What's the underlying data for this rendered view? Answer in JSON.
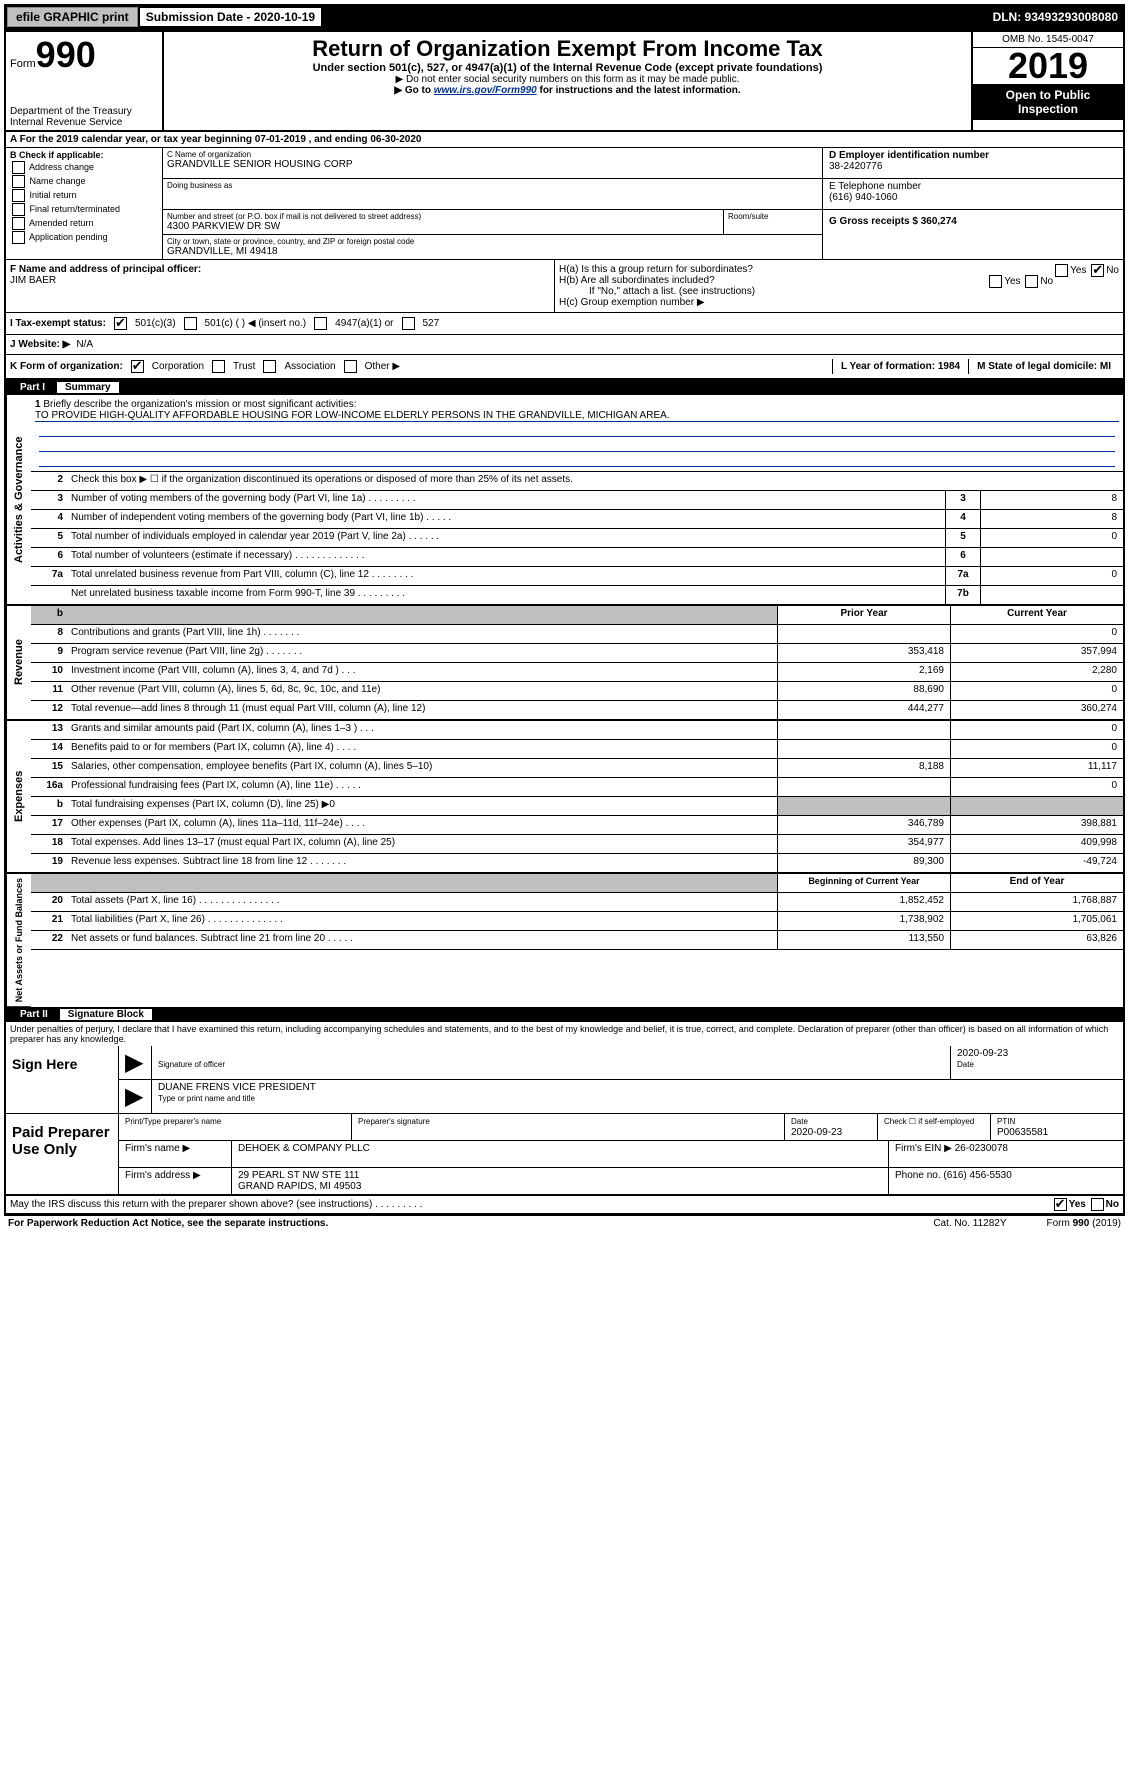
{
  "top_bar": {
    "efile": "efile GRAPHIC print",
    "submission_label": "Submission Date - 2020-10-19",
    "dln": "DLN: 93493293008080"
  },
  "header": {
    "form_label": "Form",
    "form_number": "990",
    "dept": "Department of the Treasury",
    "irs": "Internal Revenue Service",
    "title": "Return of Organization Exempt From Income Tax",
    "subtitle": "Under section 501(c), 527, or 4947(a)(1) of the Internal Revenue Code (except private foundations)",
    "note1": "▶ Do not enter social security numbers on this form as it may be made public.",
    "note2_pre": "▶ Go to ",
    "note2_link": "www.irs.gov/Form990",
    "note2_post": " for instructions and the latest information.",
    "omb": "OMB No. 1545-0047",
    "year": "2019",
    "open": "Open to Public Inspection"
  },
  "row_a": "A For the 2019 calendar year, or tax year beginning 07-01-2019   , and ending 06-30-2020",
  "col_b": {
    "header": "B Check if applicable:",
    "items": [
      "Address change",
      "Name change",
      "Initial return",
      "Final return/terminated",
      "Amended return",
      "Application pending"
    ]
  },
  "col_c": {
    "name_label": "C Name of organization",
    "name": "GRANDVILLE SENIOR HOUSING CORP",
    "dba_label": "Doing business as",
    "addr_label": "Number and street (or P.O. box if mail is not delivered to street address)",
    "addr": "4300 PARKVIEW DR SW",
    "room_label": "Room/suite",
    "city_label": "City or town, state or province, country, and ZIP or foreign postal code",
    "city": "GRANDVILLE, MI  49418"
  },
  "col_de": {
    "d_label": "D Employer identification number",
    "ein": "38-2420776",
    "e_label": "E Telephone number",
    "phone": "(616) 940-1060",
    "g_label": "G Gross receipts $ 360,274"
  },
  "row_f": {
    "label": "F  Name and address of principal officer:",
    "name": "JIM BAER"
  },
  "row_h": {
    "ha": "H(a)  Is this a group return for subordinates?",
    "hb": "H(b)  Are all subordinates included?",
    "hb_note": "If \"No,\" attach a list. (see instructions)",
    "hc": "H(c)  Group exemption number ▶"
  },
  "row_i": {
    "label": "I   Tax-exempt status:",
    "opt1": "501(c)(3)",
    "opt2": "501(c) (   ) ◀ (insert no.)",
    "opt3": "4947(a)(1) or",
    "opt4": "527"
  },
  "row_j": {
    "label": "J   Website: ▶",
    "val": "N/A"
  },
  "row_k": {
    "label": "K Form of organization:",
    "opts": [
      "Corporation",
      "Trust",
      "Association",
      "Other ▶"
    ],
    "l": "L Year of formation: 1984",
    "m": "M State of legal domicile: MI"
  },
  "part1": {
    "label": "Part I",
    "title": "Summary"
  },
  "governance": {
    "tab": "Activities & Governance",
    "l1": "Briefly describe the organization's mission or most significant activities:",
    "l1_val": "TO PROVIDE HIGH-QUALITY AFFORDABLE HOUSING FOR LOW-INCOME ELDERLY PERSONS IN THE GRANDVILLE, MICHIGAN AREA.",
    "l2": "Check this box ▶ ☐  if the organization discontinued its operations or disposed of more than 25% of its net assets.",
    "l3": "Number of voting members of the governing body (Part VI, line 1a)   .    .    .    .    .    .    .    .    .",
    "l4": "Number of independent voting members of the governing body (Part VI, line 1b)   .    .    .    .    .",
    "l5": "Total number of individuals employed in calendar year 2019 (Part V, line 2a)   .    .    .    .    .    .",
    "l6": "Total number of volunteers (estimate if necessary)   .    .    .    .    .    .    .    .    .    .    .    .    .",
    "l7a": "Total unrelated business revenue from Part VIII, column (C), line 12   .    .    .    .    .    .    .    .",
    "l7b": "Net unrelated business taxable income from Form 990-T, line 39   .    .    .    .    .    .    .    .    .",
    "v3": "8",
    "v4": "8",
    "v5": "0",
    "v6": "",
    "v7a": "0",
    "v7b": ""
  },
  "revenue": {
    "tab": "Revenue",
    "header_prior": "Prior Year",
    "header_current": "Current Year",
    "rows": [
      {
        "n": "8",
        "d": "Contributions and grants (Part VIII, line 1h)   .    .    .    .    .    .    .",
        "p": "",
        "c": "0"
      },
      {
        "n": "9",
        "d": "Program service revenue (Part VIII, line 2g)   .    .    .    .    .    .    .",
        "p": "353,418",
        "c": "357,994"
      },
      {
        "n": "10",
        "d": "Investment income (Part VIII, column (A), lines 3, 4, and 7d )   .    .    .",
        "p": "2,169",
        "c": "2,280"
      },
      {
        "n": "11",
        "d": "Other revenue (Part VIII, column (A), lines 5, 6d, 8c, 9c, 10c, and 11e)",
        "p": "88,690",
        "c": "0"
      },
      {
        "n": "12",
        "d": "Total revenue—add lines 8 through 11 (must equal Part VIII, column (A), line 12)",
        "p": "444,277",
        "c": "360,274"
      }
    ]
  },
  "expenses": {
    "tab": "Expenses",
    "rows": [
      {
        "n": "13",
        "d": "Grants and similar amounts paid (Part IX, column (A), lines 1–3 )   .    .    .",
        "p": "",
        "c": "0"
      },
      {
        "n": "14",
        "d": "Benefits paid to or for members (Part IX, column (A), line 4)   .    .    .    .",
        "p": "",
        "c": "0"
      },
      {
        "n": "15",
        "d": "Salaries, other compensation, employee benefits (Part IX, column (A), lines 5–10)",
        "p": "8,188",
        "c": "11,117"
      },
      {
        "n": "16a",
        "d": "Professional fundraising fees (Part IX, column (A), line 11e)   .    .    .    .    .",
        "p": "",
        "c": "0"
      },
      {
        "n": "b",
        "d": "Total fundraising expenses (Part IX, column (D), line 25) ▶0",
        "p": "shaded",
        "c": "shaded"
      },
      {
        "n": "17",
        "d": "Other expenses (Part IX, column (A), lines 11a–11d, 11f–24e)   .    .    .    .",
        "p": "346,789",
        "c": "398,881"
      },
      {
        "n": "18",
        "d": "Total expenses. Add lines 13–17 (must equal Part IX, column (A), line 25)",
        "p": "354,977",
        "c": "409,998"
      },
      {
        "n": "19",
        "d": "Revenue less expenses. Subtract line 18 from line 12   .    .    .    .    .    .    .",
        "p": "89,300",
        "c": "-49,724"
      }
    ]
  },
  "netassets": {
    "tab": "Net Assets or Fund Balances",
    "header_begin": "Beginning of Current Year",
    "header_end": "End of Year",
    "rows": [
      {
        "n": "20",
        "d": "Total assets (Part X, line 16)   .    .    .    .    .    .    .    .    .    .    .    .    .    .    .",
        "p": "1,852,452",
        "c": "1,768,887"
      },
      {
        "n": "21",
        "d": "Total liabilities (Part X, line 26)   .    .    .    .    .    .    .    .    .    .    .    .    .    .",
        "p": "1,738,902",
        "c": "1,705,061"
      },
      {
        "n": "22",
        "d": "Net assets or fund balances. Subtract line 21 from line 20   .    .    .    .    .",
        "p": "113,550",
        "c": "63,826"
      }
    ]
  },
  "part2": {
    "label": "Part II",
    "title": "Signature Block",
    "perjury": "Under penalties of perjury, I declare that I have examined this return, including accompanying schedules and statements, and to the best of my knowledge and belief, it is true, correct, and complete. Declaration of preparer (other than officer) is based on all information of which preparer has any knowledge."
  },
  "sign": {
    "label": "Sign Here",
    "sig_officer": "Signature of officer",
    "date": "2020-09-23",
    "date_label": "Date",
    "name": "DUANE FRENS VICE PRESIDENT",
    "name_label": "Type or print name and title"
  },
  "paid": {
    "label": "Paid Preparer Use Only",
    "h1": "Print/Type preparer's name",
    "h2": "Preparer's signature",
    "h3": "Date",
    "h3v": "2020-09-23",
    "h4": "Check ☐ if self-employed",
    "h5": "PTIN",
    "h5v": "P00635581",
    "firm_label": "Firm's name    ▶",
    "firm": "DEHOEK & COMPANY PLLC",
    "ein_label": "Firm's EIN ▶",
    "ein": "26-0230078",
    "addr_label": "Firm's address ▶",
    "addr1": "29 PEARL ST NW STE 111",
    "addr2": "GRAND RAPIDS, MI  49503",
    "phone_label": "Phone no.",
    "phone": "(616) 456-5530"
  },
  "discuss": "May the IRS discuss this return with the preparer shown above? (see instructions)   .    .    .    .    .    .    .    .    .",
  "footer": {
    "pra": "For Paperwork Reduction Act Notice, see the separate instructions.",
    "cat": "Cat. No. 11282Y",
    "form": "Form 990 (2019)"
  }
}
